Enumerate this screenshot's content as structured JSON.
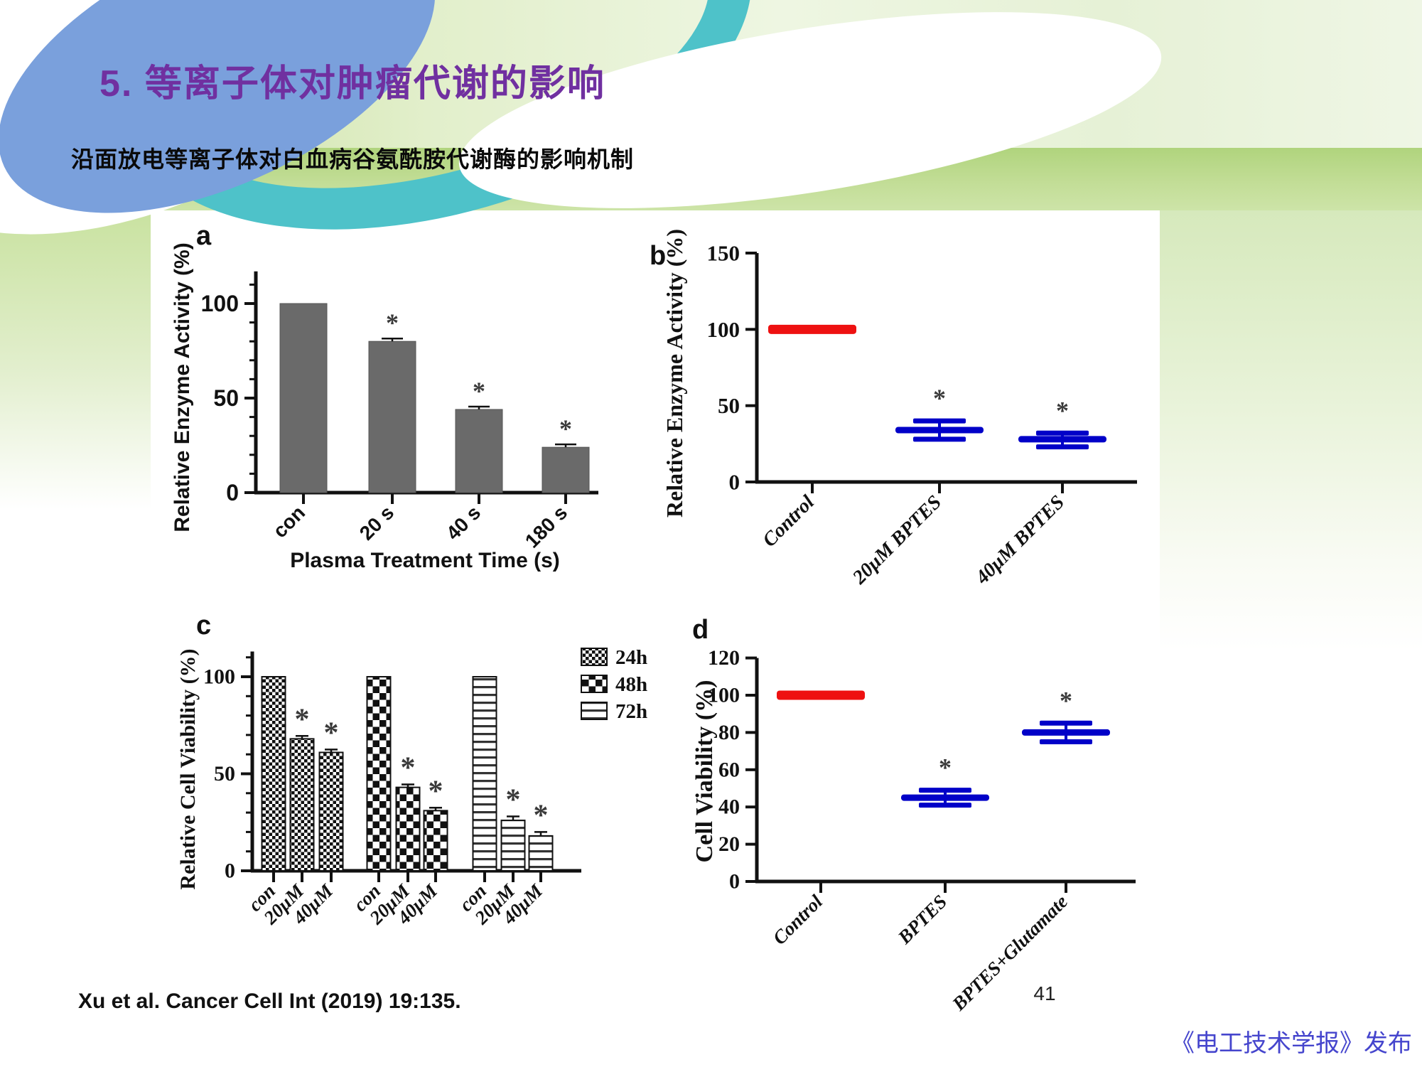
{
  "header": {
    "title": "5. 等离子体对肿瘤代谢的影响",
    "subtitle": "沿面放电等离子体对白血病谷氨酰胺代谢酶的影响机制"
  },
  "footer": {
    "citation": "Xu et al. Cancer Cell Int (2019) 19:135.",
    "page_number": "41",
    "publisher": "《电工技术学报》发布"
  },
  "colors": {
    "title_purple": "#7030a0",
    "publisher_blue": "#4545cd",
    "bar_gray": "#6a6a6a",
    "control_red": "#ee1111",
    "treatment_blue": "#0101c8",
    "swirl_teal": "#4ec2c9",
    "swirl_blue": "#7aa0dc"
  },
  "chart_data": [
    {
      "id": "a",
      "type": "bar",
      "panel_label": "a",
      "ylabel": "Relative Enzyme Activity (%)",
      "xlabel": "Plasma Treatment Time (s)",
      "categories": [
        "con",
        "20 s",
        "40 s",
        "180 s"
      ],
      "values": [
        100,
        80,
        44,
        24
      ],
      "errors": [
        0,
        1.5,
        1.5,
        1.5
      ],
      "sig_markers": [
        false,
        true,
        true,
        true
      ],
      "yticks": [
        0,
        50,
        100
      ],
      "ylim": [
        0,
        117
      ],
      "minor_tick_step": 10,
      "bar_color": "#6a6a6a",
      "grid": false,
      "font": "sans"
    },
    {
      "id": "b",
      "type": "scatter",
      "panel_label": "b",
      "ylabel": "Relative Enzyme Activity (%)",
      "xlabel": "",
      "categories": [
        "Control",
        "20μM BPTES",
        "40μM BPTES"
      ],
      "means": [
        100,
        34,
        28
      ],
      "err_hi": [
        0,
        6,
        4
      ],
      "err_lo": [
        0,
        6,
        5
      ],
      "point_colors": [
        "#ee1111",
        "#0101c8",
        "#0101c8"
      ],
      "sig_markers": [
        false,
        true,
        true
      ],
      "yticks": [
        0,
        50,
        100,
        150
      ],
      "ylim": [
        0,
        150
      ],
      "grid": false,
      "font": "serif"
    },
    {
      "id": "c",
      "type": "grouped-bar",
      "panel_label": "c",
      "ylabel": "Relative Cell Viability (%)",
      "xlabel": "",
      "group_categories": [
        "con",
        "20μM",
        "40μM"
      ],
      "series": [
        {
          "name": "24h",
          "pattern": "fine-check",
          "values": [
            100,
            68,
            61
          ],
          "errors": [
            0,
            1.5,
            1.5
          ],
          "sig_markers": [
            false,
            true,
            true
          ]
        },
        {
          "name": "48h",
          "pattern": "coarse-check",
          "values": [
            100,
            43,
            31
          ],
          "errors": [
            0,
            1.5,
            1.5
          ],
          "sig_markers": [
            false,
            true,
            true
          ]
        },
        {
          "name": "72h",
          "pattern": "h-stripes",
          "values": [
            100,
            26,
            18
          ],
          "errors": [
            0,
            2,
            2
          ],
          "sig_markers": [
            false,
            true,
            true
          ]
        }
      ],
      "yticks": [
        0,
        50,
        100
      ],
      "ylim": [
        0,
        113
      ],
      "minor_tick_step": 10,
      "legend_position": "top-right",
      "grid": false,
      "font": "serif"
    },
    {
      "id": "d",
      "type": "scatter",
      "panel_label": "d",
      "ylabel": "Cell Viability (%)",
      "xlabel": "",
      "categories": [
        "Control",
        "BPTES",
        "BPTES+Glutamate"
      ],
      "means": [
        100,
        45,
        80
      ],
      "err_hi": [
        0,
        4,
        5
      ],
      "err_lo": [
        0,
        4,
        5
      ],
      "point_colors": [
        "#ee1111",
        "#0101c8",
        "#0101c8"
      ],
      "sig_markers": [
        false,
        true,
        true
      ],
      "yticks": [
        0,
        20,
        40,
        60,
        80,
        100,
        120
      ],
      "ylim": [
        0,
        120
      ],
      "grid": false,
      "font": "serif"
    }
  ]
}
